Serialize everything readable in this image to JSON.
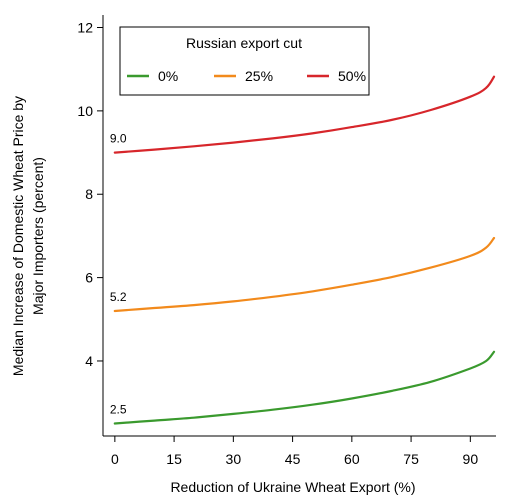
{
  "chart_data": {
    "type": "line",
    "xlabel": "Reduction of Ukraine Wheat Export (%)",
    "ylabel_lines": [
      "Median Increase of Domestic Wheat Price by",
      "Major Importers (percent)"
    ],
    "xlim": [
      -3,
      96.5
    ],
    "ylim": [
      2.2,
      12.3
    ],
    "xticks": [
      0,
      15,
      30,
      45,
      60,
      75,
      90
    ],
    "yticks": [
      4,
      6,
      8,
      10,
      12
    ],
    "grid": false,
    "legend": {
      "title": "Russian export cut",
      "placement": "top-left"
    },
    "x": [
      0,
      10,
      20,
      30,
      40,
      50,
      60,
      70,
      80,
      90,
      94,
      96
    ],
    "series": [
      {
        "name": "0%",
        "color": "#3a9a2e",
        "start_label": "2.5",
        "values": [
          2.5,
          2.57,
          2.64,
          2.73,
          2.83,
          2.95,
          3.1,
          3.28,
          3.5,
          3.82,
          4.0,
          4.22
        ]
      },
      {
        "name": "25%",
        "color": "#f28a1c",
        "start_label": "5.2",
        "values": [
          5.2,
          5.27,
          5.34,
          5.43,
          5.54,
          5.67,
          5.83,
          6.01,
          6.24,
          6.52,
          6.72,
          6.95
        ]
      },
      {
        "name": "50%",
        "color": "#d7262b",
        "start_label": "9.0",
        "values": [
          9.0,
          9.07,
          9.15,
          9.24,
          9.34,
          9.46,
          9.61,
          9.78,
          10.02,
          10.34,
          10.55,
          10.82
        ]
      }
    ]
  }
}
